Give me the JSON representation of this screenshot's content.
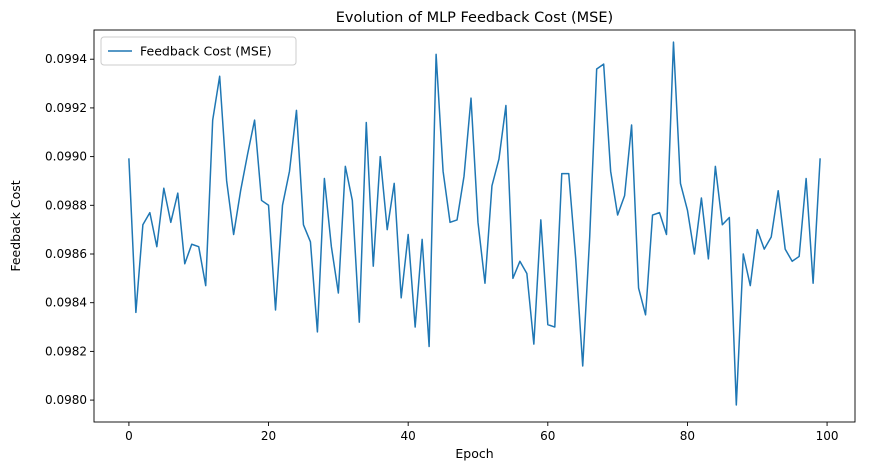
{
  "chart_data": {
    "type": "line",
    "title": "Evolution of MLP Feedback Cost (MSE)",
    "xlabel": "Epoch",
    "ylabel": "Feedback Cost",
    "xlim": [
      -5,
      104
    ],
    "ylim": [
      0.09791,
      0.09952
    ],
    "xticks": [
      0,
      20,
      40,
      60,
      80,
      100
    ],
    "yticks": [
      0.098,
      0.0982,
      0.0984,
      0.0986,
      0.0988,
      0.099,
      0.0992,
      0.0994
    ],
    "xtick_labels": [
      "0",
      "20",
      "40",
      "60",
      "80",
      "100"
    ],
    "ytick_labels": [
      "0.0980",
      "0.0982",
      "0.0984",
      "0.0986",
      "0.0988",
      "0.0990",
      "0.0992",
      "0.0994"
    ],
    "grid": false,
    "legend_position": "top-left",
    "series": [
      {
        "name": "Feedback Cost (MSE)",
        "color": "#1f77b4",
        "x": [
          0,
          1,
          2,
          3,
          4,
          5,
          6,
          7,
          8,
          9,
          10,
          11,
          12,
          13,
          14,
          15,
          16,
          17,
          18,
          19,
          20,
          21,
          22,
          23,
          24,
          25,
          26,
          27,
          28,
          29,
          30,
          31,
          32,
          33,
          34,
          35,
          36,
          37,
          38,
          39,
          40,
          41,
          42,
          43,
          44,
          45,
          46,
          47,
          48,
          49,
          50,
          51,
          52,
          53,
          54,
          55,
          56,
          57,
          58,
          59,
          60,
          61,
          62,
          63,
          64,
          65,
          66,
          67,
          68,
          69,
          70,
          71,
          72,
          73,
          74,
          75,
          76,
          77,
          78,
          79,
          80,
          81,
          82,
          83,
          84,
          85,
          86,
          87,
          88,
          89,
          90,
          91,
          92,
          93,
          94,
          95,
          96,
          97,
          98,
          99
        ],
        "values": [
          0.09899,
          0.09836,
          0.09872,
          0.09877,
          0.09863,
          0.09887,
          0.09873,
          0.09885,
          0.09856,
          0.09864,
          0.09863,
          0.09847,
          0.09915,
          0.09933,
          0.0989,
          0.09868,
          0.09886,
          0.09901,
          0.09915,
          0.09882,
          0.0988,
          0.09837,
          0.0988,
          0.09894,
          0.09919,
          0.09872,
          0.09865,
          0.09828,
          0.09891,
          0.09863,
          0.09844,
          0.09896,
          0.09882,
          0.09832,
          0.09914,
          0.09855,
          0.099,
          0.0987,
          0.09889,
          0.09842,
          0.09868,
          0.0983,
          0.09866,
          0.09822,
          0.09942,
          0.09894,
          0.09873,
          0.09874,
          0.09892,
          0.09924,
          0.09873,
          0.09848,
          0.09888,
          0.09899,
          0.09921,
          0.0985,
          0.09857,
          0.09852,
          0.09823,
          0.09874,
          0.09831,
          0.0983,
          0.09893,
          0.09893,
          0.09858,
          0.09814,
          0.09867,
          0.09936,
          0.09938,
          0.09894,
          0.09876,
          0.09884,
          0.09913,
          0.09846,
          0.09835,
          0.09876,
          0.09877,
          0.09868,
          0.09947,
          0.09889,
          0.09878,
          0.0986,
          0.09883,
          0.09858,
          0.09896,
          0.09872,
          0.09875,
          0.09798,
          0.0986,
          0.09847,
          0.0987,
          0.09862,
          0.09867,
          0.09886,
          0.09862,
          0.09857,
          0.09859,
          0.09891,
          0.09848,
          0.09899
        ]
      }
    ]
  }
}
